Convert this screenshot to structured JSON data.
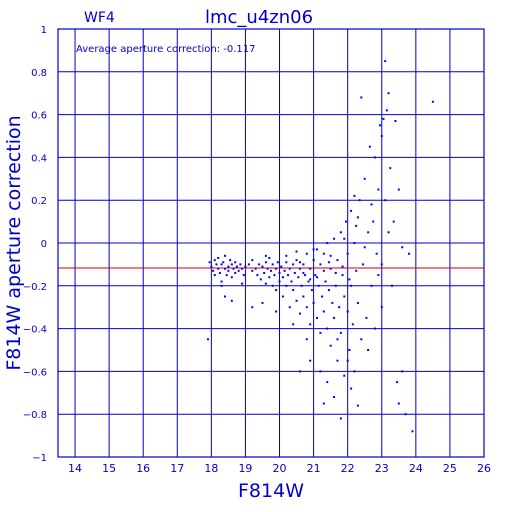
{
  "header": {
    "panel": "WF4",
    "title": "lmc_u4zn06"
  },
  "annotation": "Average aperture correction: -0.117",
  "colors": {
    "axis": "#0000cc",
    "points": "#0000ff",
    "reference_line": "#cc0000",
    "background": "#ffffff"
  },
  "chart_data": {
    "type": "scatter",
    "xlabel": "F814W",
    "ylabel": "F814W aperture correction",
    "xlim": [
      13.5,
      26
    ],
    "ylim": [
      -1,
      1
    ],
    "xticks": [
      14,
      15,
      16,
      17,
      18,
      19,
      20,
      21,
      22,
      23,
      24,
      25,
      26
    ],
    "yticks": [
      -1,
      -0.8,
      -0.6,
      -0.4,
      -0.2,
      0,
      0.2,
      0.4,
      0.6,
      0.8,
      1
    ],
    "ytick_labels": [
      "−1",
      "−0.8",
      "−0.6",
      "−0.4",
      "−0.2",
      "0",
      "0.2",
      "0.4",
      "0.6",
      "0.8",
      "1"
    ],
    "grid": true,
    "reference_line_y": -0.117,
    "series": [
      {
        "points": [
          [
            17.9,
            -0.45
          ],
          [
            17.95,
            -0.09
          ],
          [
            18.0,
            -0.11
          ],
          [
            18.05,
            -0.13
          ],
          [
            18.1,
            -0.08
          ],
          [
            18.1,
            -0.15
          ],
          [
            18.15,
            -0.1
          ],
          [
            18.2,
            -0.12
          ],
          [
            18.2,
            -0.07
          ],
          [
            18.25,
            -0.14
          ],
          [
            18.3,
            -0.1
          ],
          [
            18.3,
            -0.18
          ],
          [
            18.35,
            -0.09
          ],
          [
            18.4,
            -0.12
          ],
          [
            18.4,
            -0.06
          ],
          [
            18.45,
            -0.15
          ],
          [
            18.5,
            -0.11
          ],
          [
            18.5,
            -0.13
          ],
          [
            18.55,
            -0.08
          ],
          [
            18.6,
            -0.16
          ],
          [
            18.6,
            -0.1
          ],
          [
            18.65,
            -0.12
          ],
          [
            18.7,
            -0.09
          ],
          [
            18.7,
            -0.14
          ],
          [
            18.75,
            -0.11
          ],
          [
            18.8,
            -0.13
          ],
          [
            18.85,
            -0.1
          ],
          [
            18.9,
            -0.12
          ],
          [
            18.95,
            -0.15
          ],
          [
            19.0,
            -0.11
          ],
          [
            18.4,
            -0.25
          ],
          [
            18.6,
            -0.27
          ],
          [
            18.3,
            -0.2
          ],
          [
            18.9,
            -0.19
          ],
          [
            19.1,
            -0.1
          ],
          [
            19.2,
            -0.13
          ],
          [
            19.2,
            -0.08
          ],
          [
            19.3,
            -0.12
          ],
          [
            19.35,
            -0.15
          ],
          [
            19.4,
            -0.1
          ],
          [
            19.45,
            -0.17
          ],
          [
            19.5,
            -0.11
          ],
          [
            19.55,
            -0.14
          ],
          [
            19.6,
            -0.09
          ],
          [
            19.6,
            -0.19
          ],
          [
            19.65,
            -0.12
          ],
          [
            19.7,
            -0.16
          ],
          [
            19.7,
            -0.07
          ],
          [
            19.75,
            -0.13
          ],
          [
            19.8,
            -0.1
          ],
          [
            19.8,
            -0.2
          ],
          [
            19.85,
            -0.15
          ],
          [
            19.9,
            -0.12
          ],
          [
            19.9,
            -0.22
          ],
          [
            19.95,
            -0.09
          ],
          [
            20.0,
            -0.14
          ],
          [
            20.0,
            -0.18
          ],
          [
            20.05,
            -0.11
          ],
          [
            20.1,
            -0.16
          ],
          [
            20.1,
            -0.25
          ],
          [
            20.15,
            -0.13
          ],
          [
            20.2,
            -0.09
          ],
          [
            20.2,
            -0.2
          ],
          [
            20.25,
            -0.15
          ],
          [
            20.3,
            -0.12
          ],
          [
            20.3,
            -0.3
          ],
          [
            20.35,
            -0.18
          ],
          [
            20.4,
            -0.1
          ],
          [
            20.4,
            -0.22
          ],
          [
            20.45,
            -0.14
          ],
          [
            20.5,
            -0.08
          ],
          [
            20.5,
            -0.27
          ],
          [
            20.55,
            -0.16
          ],
          [
            20.6,
            -0.12
          ],
          [
            20.6,
            -0.33
          ],
          [
            20.65,
            -0.2
          ],
          [
            20.7,
            -0.1
          ],
          [
            20.7,
            -0.25
          ],
          [
            20.75,
            -0.15
          ],
          [
            20.8,
            -0.05
          ],
          [
            20.8,
            -0.3
          ],
          [
            20.85,
            -0.18
          ],
          [
            20.9,
            -0.12
          ],
          [
            20.9,
            -0.38
          ],
          [
            20.95,
            -0.22
          ],
          [
            21.0,
            -0.08
          ],
          [
            21.0,
            -0.28
          ],
          [
            21.05,
            -0.15
          ],
          [
            21.1,
            -0.03
          ],
          [
            21.1,
            -0.35
          ],
          [
            21.15,
            -0.2
          ],
          [
            21.2,
            -0.1
          ],
          [
            21.2,
            -0.42
          ],
          [
            21.25,
            -0.25
          ],
          [
            21.3,
            -0.05
          ],
          [
            21.3,
            -0.32
          ],
          [
            21.35,
            -0.18
          ],
          [
            21.4,
            0.0
          ],
          [
            21.4,
            -0.4
          ],
          [
            21.45,
            -0.22
          ],
          [
            21.5,
            -0.12
          ],
          [
            21.5,
            -0.48
          ],
          [
            21.55,
            -0.28
          ],
          [
            21.6,
            0.02
          ],
          [
            21.6,
            -0.35
          ],
          [
            21.65,
            -0.2
          ],
          [
            21.7,
            -0.08
          ],
          [
            21.7,
            -0.55
          ],
          [
            21.75,
            -0.3
          ],
          [
            21.8,
            0.05
          ],
          [
            21.8,
            -0.42
          ],
          [
            21.85,
            -0.15
          ],
          [
            21.9,
            -0.25
          ],
          [
            21.9,
            -0.62
          ],
          [
            21.95,
            0.1
          ],
          [
            22.0,
            -0.32
          ],
          [
            22.0,
            -0.05
          ],
          [
            22.05,
            -0.5
          ],
          [
            22.1,
            0.15
          ],
          [
            22.1,
            -0.2
          ],
          [
            22.15,
            -0.38
          ],
          [
            22.2,
            0.0
          ],
          [
            22.2,
            -0.6
          ],
          [
            22.25,
            0.08
          ],
          [
            22.3,
            -0.28
          ],
          [
            22.35,
            0.2
          ],
          [
            22.4,
            -0.45
          ],
          [
            22.45,
            -0.1
          ],
          [
            22.5,
            0.3
          ],
          [
            22.55,
            -0.35
          ],
          [
            22.6,
            0.05
          ],
          [
            22.65,
            0.45
          ],
          [
            22.7,
            -0.2
          ],
          [
            22.75,
            0.1
          ],
          [
            22.8,
            0.4
          ],
          [
            22.85,
            -0.05
          ],
          [
            22.9,
            0.25
          ],
          [
            22.95,
            0.55
          ],
          [
            23.0,
            -0.3
          ],
          [
            23.05,
            0.58
          ],
          [
            23.1,
            0.2
          ],
          [
            23.15,
            0.62
          ],
          [
            23.2,
            0.05
          ],
          [
            23.25,
            0.35
          ],
          [
            23.3,
            -0.2
          ],
          [
            23.35,
            0.1
          ],
          [
            23.45,
            -0.65
          ],
          [
            23.5,
            0.25
          ],
          [
            23.6,
            -0.02
          ],
          [
            23.7,
            -0.8
          ],
          [
            23.8,
            -0.05
          ],
          [
            23.9,
            -0.88
          ],
          [
            22.4,
            0.68
          ],
          [
            23.1,
            0.85
          ],
          [
            23.2,
            0.7
          ],
          [
            24.5,
            0.66
          ],
          [
            23.4,
            0.57
          ],
          [
            23.0,
            0.5
          ],
          [
            22.7,
            0.18
          ],
          [
            22.2,
            0.22
          ],
          [
            20.6,
            -0.6
          ],
          [
            20.9,
            -0.55
          ],
          [
            21.2,
            -0.6
          ],
          [
            21.4,
            -0.65
          ],
          [
            21.6,
            -0.72
          ],
          [
            21.8,
            -0.82
          ],
          [
            21.3,
            -0.75
          ],
          [
            22.1,
            -0.68
          ],
          [
            22.3,
            -0.76
          ],
          [
            22.0,
            -0.55
          ],
          [
            21.7,
            -0.45
          ],
          [
            20.8,
            -0.45
          ],
          [
            20.4,
            -0.38
          ],
          [
            19.9,
            -0.32
          ],
          [
            19.5,
            -0.28
          ],
          [
            19.2,
            -0.3
          ],
          [
            22.6,
            -0.5
          ],
          [
            22.8,
            -0.4
          ],
          [
            23.6,
            -0.6
          ],
          [
            23.5,
            -0.75
          ],
          [
            23.0,
            -0.1
          ],
          [
            22.9,
            -0.15
          ],
          [
            22.5,
            -0.02
          ],
          [
            22.3,
            0.12
          ],
          [
            21.9,
            0.02
          ],
          [
            21.5,
            -0.06
          ],
          [
            21.0,
            -0.03
          ],
          [
            20.5,
            -0.04
          ],
          [
            20.2,
            -0.06
          ],
          [
            19.6,
            -0.06
          ],
          [
            20.7,
            -0.14
          ],
          [
            21.1,
            -0.16
          ],
          [
            21.3,
            -0.13
          ],
          [
            20.9,
            -0.17
          ],
          [
            20.6,
            -0.09
          ],
          [
            21.45,
            -0.09
          ],
          [
            21.65,
            -0.14
          ],
          [
            21.85,
            -0.11
          ],
          [
            22.05,
            -0.17
          ],
          [
            22.25,
            -0.13
          ]
        ]
      }
    ]
  }
}
